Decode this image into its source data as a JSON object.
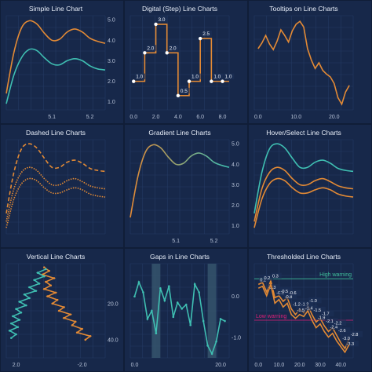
{
  "colors": {
    "page_bg": "#101d38",
    "panel_bg": "#17284a",
    "grid": "#243a63",
    "orange": "#e38a35",
    "teal": "#3fbfb2",
    "high_warning": "#3fbf9a",
    "low_warning": "#e0207a"
  },
  "chart_data": [
    {
      "type": "line",
      "title": "Simple Line Chart",
      "x_ticks": [
        "5.1",
        "5.2"
      ],
      "y_ticks": [
        "1.0",
        "2.0",
        "3.0",
        "4.0",
        "5.0"
      ],
      "xlim": [
        4.98,
        5.24
      ],
      "ylim": [
        0.6,
        5.2
      ],
      "grid": true,
      "y_axis": "right",
      "series": [
        {
          "color": "#e38a35",
          "x": [
            4.98,
            5.0,
            5.02,
            5.04,
            5.06,
            5.08,
            5.1,
            5.12,
            5.14,
            5.16,
            5.18,
            5.2,
            5.22,
            5.24
          ],
          "y": [
            1.4,
            3.4,
            4.6,
            4.95,
            4.8,
            4.35,
            4.0,
            4.05,
            4.4,
            4.55,
            4.4,
            4.1,
            3.95,
            3.85
          ]
        },
        {
          "color": "#3fbfb2",
          "x": [
            4.98,
            5.0,
            5.02,
            5.04,
            5.06,
            5.08,
            5.1,
            5.12,
            5.14,
            5.16,
            5.18,
            5.2,
            5.22,
            5.24
          ],
          "y": [
            0.9,
            2.3,
            3.15,
            3.55,
            3.5,
            3.15,
            2.85,
            2.8,
            3.0,
            3.1,
            3.0,
            2.75,
            2.6,
            2.55
          ]
        }
      ]
    },
    {
      "type": "line",
      "title": "Digital (Step) Line Charts",
      "x_ticks": [
        "0.0",
        "2.0",
        "4.0",
        "6.0",
        "8.0"
      ],
      "y_ticks": [],
      "xlim": [
        -0.3,
        8.6
      ],
      "ylim": [
        0,
        3.3
      ],
      "grid": true,
      "step": true,
      "series": [
        {
          "color": "#e38a35",
          "x": [
            0,
            1,
            2,
            3,
            4,
            5,
            6,
            7,
            8
          ],
          "y": [
            1.0,
            2.0,
            3.0,
            2.0,
            0.5,
            1.0,
            2.5,
            1.0,
            1.0
          ],
          "labels": [
            "1.0",
            "2.0",
            "3.0",
            "2.0",
            "0.5",
            "1.0",
            "2.5",
            "1.0",
            "1.0"
          ]
        }
      ]
    },
    {
      "type": "line",
      "title": "Tooltips on Line Charts",
      "x_ticks": [
        "0.0",
        "10.0",
        "20.0"
      ],
      "y_ticks": [],
      "xlim": [
        -1,
        25
      ],
      "ylim": [
        0,
        10
      ],
      "grid": true,
      "series": [
        {
          "color": "#e38a35",
          "x": [
            0,
            1,
            2,
            3,
            4,
            5,
            6,
            7,
            8,
            9,
            10,
            11,
            12,
            13,
            14,
            15,
            16,
            17,
            18,
            19,
            20,
            21,
            22,
            23,
            24
          ],
          "y": [
            6.5,
            7.1,
            7.9,
            7.0,
            6.4,
            7.3,
            8.5,
            7.9,
            7.2,
            8.4,
            9.1,
            9.4,
            8.8,
            6.5,
            5.3,
            4.4,
            5.0,
            4.2,
            3.8,
            3.5,
            2.8,
            1.3,
            0.6,
            1.9,
            2.6
          ]
        }
      ]
    },
    {
      "type": "line",
      "title": "Dashed Line Charts",
      "x_ticks": [],
      "y_ticks": [],
      "xlim": [
        4.98,
        5.24
      ],
      "ylim": [
        0.6,
        5.2
      ],
      "grid": true,
      "series": [
        {
          "color": "#e38a35",
          "dash": "5,3",
          "x": [
            4.98,
            5.0,
            5.02,
            5.04,
            5.06,
            5.08,
            5.1,
            5.12,
            5.14,
            5.16,
            5.18,
            5.2,
            5.22,
            5.24
          ],
          "y": [
            1.6,
            3.6,
            4.75,
            5.0,
            4.8,
            4.3,
            3.85,
            3.85,
            4.1,
            4.2,
            4.05,
            3.8,
            3.7,
            3.65
          ]
        },
        {
          "color": "#e38a35",
          "dash": "1.5,1.5",
          "x": [
            4.98,
            5.0,
            5.02,
            5.04,
            5.06,
            5.08,
            5.1,
            5.12,
            5.14,
            5.16,
            5.18,
            5.2,
            5.22,
            5.24
          ],
          "y": [
            1.2,
            2.8,
            3.6,
            3.85,
            3.7,
            3.3,
            3.0,
            3.0,
            3.2,
            3.3,
            3.15,
            2.95,
            2.85,
            2.8
          ]
        },
        {
          "color": "#e38a35",
          "dash": "1.5,1.5",
          "x": [
            4.98,
            5.0,
            5.02,
            5.04,
            5.06,
            5.08,
            5.1,
            5.12,
            5.14,
            5.16,
            5.18,
            5.2,
            5.22,
            5.24
          ],
          "y": [
            0.9,
            2.3,
            3.05,
            3.3,
            3.2,
            2.85,
            2.6,
            2.6,
            2.75,
            2.85,
            2.75,
            2.55,
            2.45,
            2.4
          ]
        }
      ]
    },
    {
      "type": "line",
      "title": "Gradient Line Charts",
      "x_ticks": [
        "5.1",
        "5.2"
      ],
      "y_ticks": [
        "1.0",
        "2.0",
        "3.0",
        "4.0",
        "5.0"
      ],
      "xlim": [
        4.98,
        5.24
      ],
      "ylim": [
        0.6,
        5.2
      ],
      "grid": true,
      "y_axis": "right",
      "gradient": [
        "#e38a35",
        "#3fbfb2"
      ],
      "series": [
        {
          "color": "#3fbfb2",
          "x": [
            4.98,
            5.0,
            5.02,
            5.04,
            5.06,
            5.08,
            5.1,
            5.12,
            5.14,
            5.16,
            5.18,
            5.2,
            5.22,
            5.24
          ],
          "y": [
            1.4,
            3.4,
            4.6,
            4.95,
            4.8,
            4.35,
            4.0,
            4.05,
            4.4,
            4.55,
            4.4,
            4.1,
            3.95,
            3.85
          ]
        }
      ]
    },
    {
      "type": "line",
      "title": "Hover/Select Line Charts",
      "x_ticks": [],
      "y_ticks": [],
      "xlim": [
        4.98,
        5.24
      ],
      "ylim": [
        0.6,
        5.2
      ],
      "grid": true,
      "series": [
        {
          "color": "#3fbfb2",
          "x": [
            4.98,
            5.0,
            5.02,
            5.04,
            5.06,
            5.08,
            5.1,
            5.12,
            5.14,
            5.16,
            5.18,
            5.2,
            5.22,
            5.24
          ],
          "y": [
            1.6,
            3.6,
            4.75,
            5.0,
            4.8,
            4.3,
            3.85,
            3.85,
            4.1,
            4.2,
            4.05,
            3.8,
            3.7,
            3.65
          ]
        },
        {
          "color": "#e38a35",
          "x": [
            4.98,
            5.0,
            5.02,
            5.04,
            5.06,
            5.08,
            5.1,
            5.12,
            5.14,
            5.16,
            5.18,
            5.2,
            5.22,
            5.24
          ],
          "y": [
            1.2,
            2.8,
            3.6,
            3.85,
            3.7,
            3.3,
            3.0,
            3.0,
            3.2,
            3.3,
            3.15,
            2.95,
            2.85,
            2.8
          ]
        },
        {
          "color": "#e38a35",
          "x": [
            4.98,
            5.0,
            5.02,
            5.04,
            5.06,
            5.08,
            5.1,
            5.12,
            5.14,
            5.16,
            5.18,
            5.2,
            5.22,
            5.24
          ],
          "y": [
            0.9,
            2.3,
            3.05,
            3.3,
            3.2,
            2.85,
            2.6,
            2.6,
            2.75,
            2.85,
            2.75,
            2.55,
            2.45,
            2.4
          ]
        }
      ]
    },
    {
      "type": "line",
      "title": "Vertical Line Charts",
      "x_ticks": [
        "2.0",
        "-2.0"
      ],
      "y_ticks": [
        "20.0",
        "40.0"
      ],
      "xlim": [
        2.6,
        -3.4
      ],
      "ylim": [
        -2,
        50
      ],
      "grid": true,
      "vertical": true,
      "y_axis": "right",
      "series": [
        {
          "color": "#e38a35",
          "x": [
            0.3,
            0.0,
            0.4,
            -0.3,
            0.2,
            -0.1,
            0.3,
            -0.4,
            0.1,
            -0.5,
            -0.2,
            -0.9,
            -0.6,
            -1.3,
            -0.9,
            -1.6,
            -1.4,
            -2.0,
            -1.7,
            -2.5,
            -2.2
          ],
          "y": [
            0,
            2,
            4,
            6,
            8,
            10,
            12,
            14,
            16,
            18,
            20,
            22,
            24,
            26,
            28,
            30,
            32,
            34,
            36,
            38,
            40
          ]
        },
        {
          "color": "#3fbfb2",
          "x": [
            0.2,
            0.7,
            0.3,
            0.9,
            0.6,
            1.2,
            0.8,
            1.5,
            1.2,
            1.8,
            1.4,
            2.0,
            1.7,
            2.2,
            1.8,
            2.3,
            1.9,
            2.4,
            2.0,
            2.3
          ],
          "y": [
            1,
            3,
            5,
            7,
            9,
            11,
            13,
            15,
            17,
            19,
            21,
            23,
            25,
            27,
            29,
            31,
            33,
            35,
            37,
            39
          ]
        }
      ]
    },
    {
      "type": "line",
      "title": "Gaps in Line Charts",
      "x_ticks": [
        "0.0",
        "20.0"
      ],
      "y_ticks": [
        "0.0",
        "-1.0"
      ],
      "xlim": [
        -1,
        22
      ],
      "ylim": [
        -1.5,
        0.8
      ],
      "grid": true,
      "y_axis": "right",
      "gaps": [
        [
          4,
          6
        ],
        [
          17,
          19
        ]
      ],
      "series": [
        {
          "color": "#3fbfb2",
          "x": [
            0,
            1,
            2,
            3,
            4,
            5,
            6,
            7,
            8,
            9,
            10,
            11,
            12,
            13,
            14,
            15,
            16,
            17,
            18,
            19,
            20,
            21
          ],
          "y": [
            0.0,
            0.35,
            0.1,
            -0.55,
            -0.35,
            -0.9,
            0.2,
            -0.1,
            0.25,
            -0.5,
            -0.15,
            -0.3,
            -0.2,
            -0.7,
            0.3,
            0.1,
            -0.6,
            -1.2,
            -1.4,
            -1.1,
            -0.55,
            -0.6
          ]
        }
      ]
    },
    {
      "type": "line",
      "title": "Thresholded Line Charts",
      "x_ticks": [
        "0.0",
        "10.0",
        "20.0",
        "30.0",
        "40.0"
      ],
      "y_ticks": [],
      "xlim": [
        -2,
        46
      ],
      "ylim": [
        -3.8,
        1.2
      ],
      "grid": true,
      "thresholds": {
        "high": 0.4,
        "low": -1.8,
        "high_label": "High warning",
        "low_label": "Low warning"
      },
      "series": [
        {
          "color": "#e38a35",
          "x": [
            0,
            2,
            4,
            6,
            8,
            10,
            12,
            14,
            16,
            18,
            20,
            22,
            24,
            26,
            28,
            30,
            32,
            34,
            36,
            38,
            40,
            42,
            44
          ],
          "y": [
            0.1,
            0.2,
            -0.3,
            0.3,
            -0.6,
            -0.5,
            -0.8,
            -0.6,
            -1.2,
            -1.5,
            -1.2,
            -1.4,
            -1.0,
            -1.5,
            -1.9,
            -1.7,
            -2.1,
            -2.4,
            -2.2,
            -2.6,
            -3.0,
            -3.3,
            -2.8
          ],
          "labels": [
            "0.1",
            "0.2",
            "-0.3",
            "0.3",
            "-0.6",
            "-0.5",
            "-0.8",
            "-0.6",
            "-1.2",
            "-1.5",
            "-1.2",
            "-1.4",
            "-1.0",
            "-1.5",
            "-1.9",
            "-1.7",
            "-2.1",
            "-2.4",
            "-2.2",
            "-2.6",
            "-3.0",
            "-3.3",
            "-2.8"
          ]
        },
        {
          "color": "#e38a35",
          "x": [
            0,
            2,
            4,
            6,
            8,
            10,
            12,
            14,
            16,
            18,
            20,
            22,
            24,
            26,
            28,
            30,
            32,
            34,
            36,
            38,
            40,
            42,
            44
          ],
          "y": [
            -0.1,
            0.0,
            -0.5,
            0.1,
            -0.9,
            -0.7,
            -1.1,
            -0.9,
            -1.5,
            -1.7,
            -1.5,
            -1.6,
            -1.3,
            -1.8,
            -2.2,
            -2.0,
            -2.4,
            -2.7,
            -2.5,
            -2.9,
            -3.2,
            -3.5,
            -3.1
          ]
        }
      ]
    }
  ]
}
